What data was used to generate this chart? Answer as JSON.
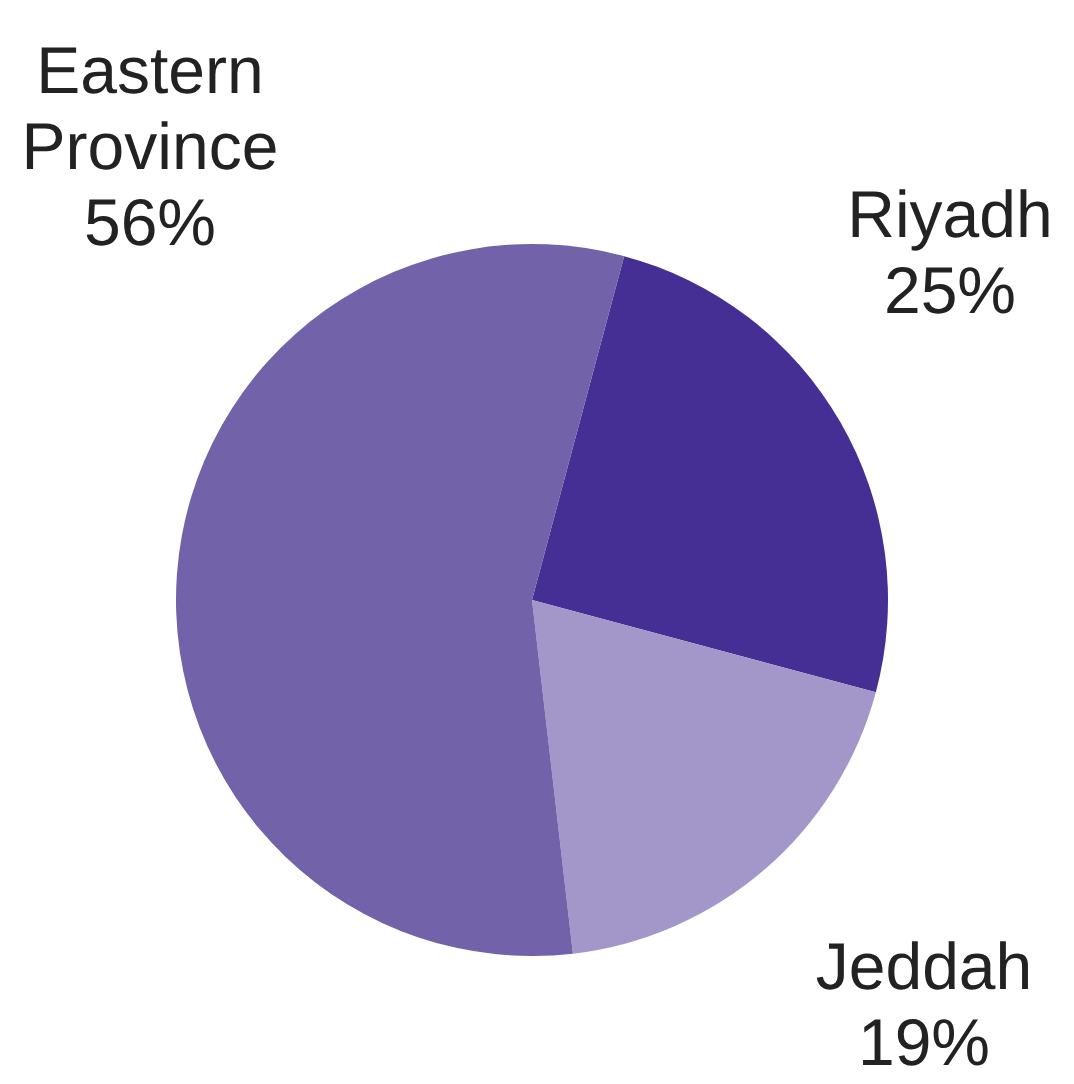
{
  "chart_data": {
    "type": "pie",
    "categories": [
      "Riyadh",
      "Jeddah",
      "Eastern Province"
    ],
    "values": [
      25,
      19,
      56
    ],
    "value_labels": [
      "25%",
      "19%",
      "56%"
    ],
    "colors": [
      "#452f94",
      "#a397c9",
      "#7262a9"
    ]
  }
}
